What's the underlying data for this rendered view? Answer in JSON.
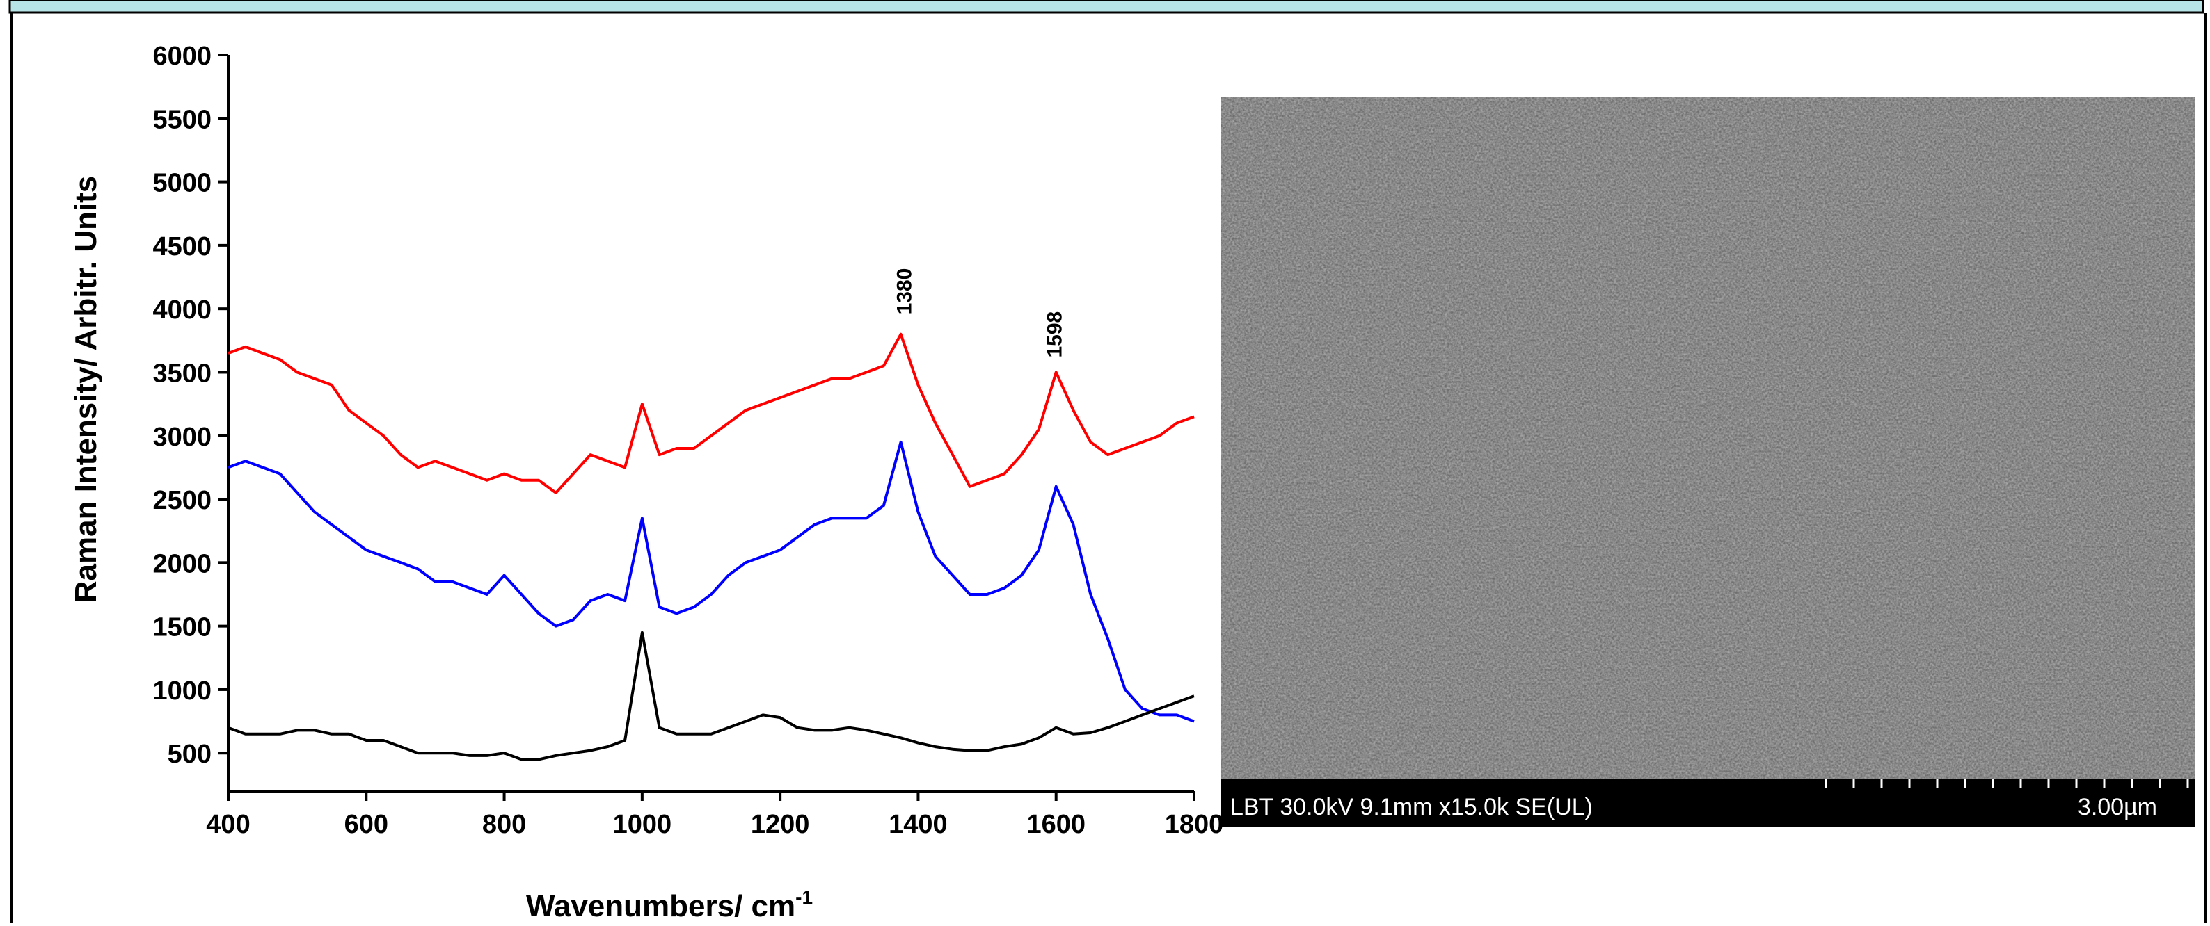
{
  "chart_data": {
    "type": "line",
    "y_label": "Raman Intensity/ Arbitr. Units",
    "x_label": "Wavenumbers/ cm",
    "x_label_superscript": "-1",
    "x": [
      400,
      425,
      450,
      475,
      500,
      525,
      550,
      575,
      600,
      625,
      650,
      675,
      700,
      725,
      750,
      775,
      800,
      825,
      850,
      875,
      900,
      925,
      950,
      975,
      1000,
      1025,
      1050,
      1075,
      1100,
      1125,
      1150,
      1175,
      1200,
      1225,
      1250,
      1275,
      1300,
      1325,
      1350,
      1375,
      1400,
      1425,
      1450,
      1475,
      1500,
      1525,
      1550,
      1575,
      1600,
      1625,
      1650,
      1675,
      1700,
      1725,
      1750,
      1775,
      1800
    ],
    "series": [
      {
        "color": "#ff0000",
        "values": [
          3650,
          3700,
          3650,
          3600,
          3500,
          3450,
          3400,
          3200,
          3100,
          3000,
          2850,
          2750,
          2800,
          2750,
          2700,
          2650,
          2700,
          2650,
          2650,
          2550,
          2700,
          2850,
          2800,
          2750,
          3250,
          2850,
          2900,
          2900,
          3000,
          3100,
          3200,
          3250,
          3300,
          3350,
          3400,
          3450,
          3450,
          3500,
          3550,
          3800,
          3400,
          3100,
          2850,
          2600,
          2650,
          2700,
          2850,
          3050,
          3500,
          3200,
          2950,
          2850,
          2900,
          2950,
          3000,
          3100,
          3150
        ]
      },
      {
        "color": "#0000ff",
        "values": [
          2750,
          2800,
          2750,
          2700,
          2550,
          2400,
          2300,
          2200,
          2100,
          2050,
          2000,
          1950,
          1850,
          1850,
          1800,
          1750,
          1900,
          1750,
          1600,
          1500,
          1550,
          1700,
          1750,
          1700,
          2350,
          1650,
          1600,
          1650,
          1750,
          1900,
          2000,
          2050,
          2100,
          2200,
          2300,
          2350,
          2350,
          2350,
          2450,
          2950,
          2400,
          2050,
          1900,
          1750,
          1750,
          1800,
          1900,
          2100,
          2600,
          2300,
          1750,
          1400,
          1000,
          850,
          800,
          800,
          750
        ]
      },
      {
        "color": "#000000",
        "values": [
          700,
          650,
          650,
          650,
          680,
          680,
          650,
          650,
          600,
          600,
          550,
          500,
          500,
          500,
          480,
          480,
          500,
          450,
          450,
          480,
          500,
          520,
          550,
          600,
          1450,
          700,
          650,
          650,
          650,
          700,
          750,
          800,
          780,
          700,
          680,
          680,
          700,
          680,
          650,
          620,
          580,
          550,
          530,
          520,
          520,
          550,
          570,
          620,
          700,
          650,
          660,
          700,
          750,
          800,
          850,
          900,
          950
        ]
      }
    ],
    "annotations": [
      {
        "text": "1380",
        "x": 1380,
        "y": 3900
      },
      {
        "text": "1598",
        "x": 1598,
        "y": 3560
      }
    ],
    "xlim": [
      400,
      1800
    ],
    "xticks": [
      400,
      600,
      800,
      1000,
      1200,
      1400,
      1600,
      1800
    ],
    "ylim": [
      200,
      6000
    ],
    "yticks": [
      500,
      1000,
      1500,
      2000,
      2500,
      3000,
      3500,
      4000,
      4500,
      5000,
      5500,
      6000
    ]
  },
  "image": {
    "caption_left": "LBT 30.0kV 9.1mm x15.0k SE(UL)",
    "caption_right": "3.00µm"
  }
}
